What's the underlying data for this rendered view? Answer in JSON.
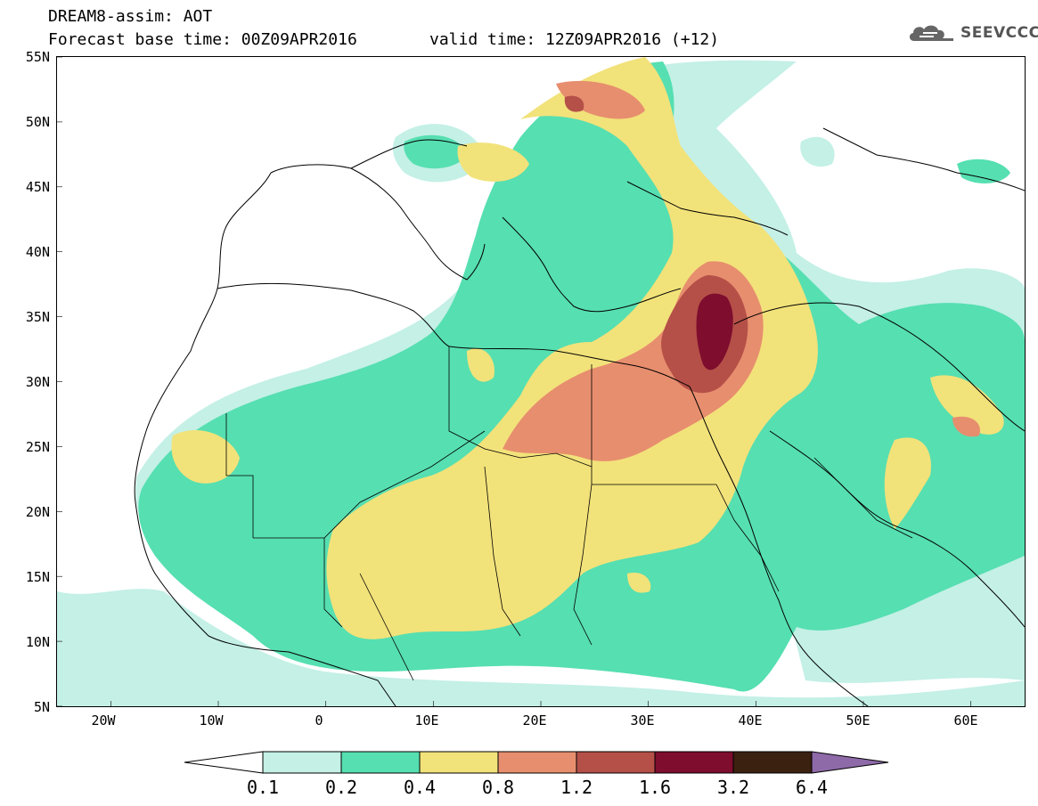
{
  "header": {
    "line1": "DREAM8-assim: AOT",
    "line2": "Forecast base time: 00Z09APR2016",
    "valid": "valid time: 12Z09APR2016 (+12)",
    "logo_text": "SEEVCCC"
  },
  "axes": {
    "y_ticks": [
      "55N",
      "50N",
      "45N",
      "40N",
      "35N",
      "30N",
      "25N",
      "20N",
      "15N",
      "10N",
      "5N"
    ],
    "x_ticks": [
      "20W",
      "10W",
      "0",
      "10E",
      "20E",
      "30E",
      "40E",
      "50E",
      "60E"
    ],
    "lon_range": [
      -25,
      65
    ],
    "lat_range": [
      5,
      55
    ]
  },
  "legend": {
    "labels": [
      "0.1",
      "0.2",
      "0.4",
      "0.8",
      "1.2",
      "1.6",
      "3.2",
      "6.4"
    ],
    "colors": [
      "#ffffff",
      "#c4f0e6",
      "#56dfb1",
      "#f2e27a",
      "#e78e6e",
      "#b55048",
      "#7e0d2e",
      "#3b2110",
      "#8e6aa9"
    ]
  },
  "icons": [
    "cloud-logo-icon"
  ]
}
